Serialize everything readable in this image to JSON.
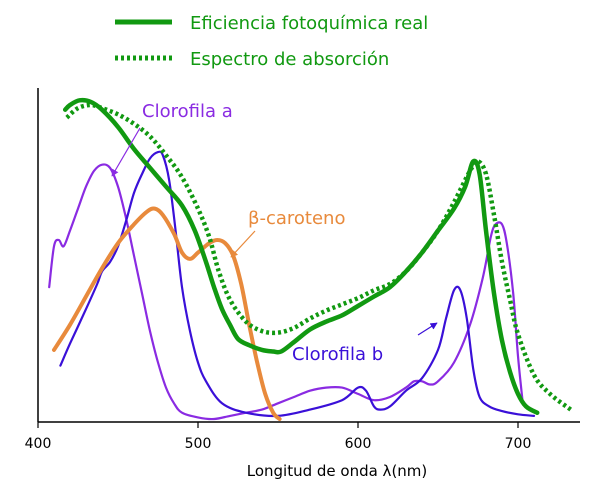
{
  "chart_data": {
    "type": "line",
    "title": "",
    "xlabel": "Longitud de onda λ(nm)",
    "ylabel": "",
    "xlim": [
      400,
      735
    ],
    "ylim": [
      0,
      1
    ],
    "xticks": [
      "400",
      "500",
      "600",
      "700"
    ],
    "grid": false,
    "legend": {
      "placement": "top-center"
    },
    "series": [
      {
        "name": "Eficiencia fotoquímica real",
        "color": "#119911",
        "style": "solid",
        "points": [
          [
            417,
            0.985
          ],
          [
            420,
            1.0
          ],
          [
            426,
            1.015
          ],
          [
            433,
            1.01
          ],
          [
            440,
            0.985
          ],
          [
            450,
            0.93
          ],
          [
            460,
            0.86
          ],
          [
            470,
            0.8
          ],
          [
            480,
            0.74
          ],
          [
            490,
            0.68
          ],
          [
            498,
            0.6
          ],
          [
            505,
            0.5
          ],
          [
            510,
            0.42
          ],
          [
            515,
            0.35
          ],
          [
            520,
            0.3
          ],
          [
            525,
            0.255
          ],
          [
            532,
            0.235
          ],
          [
            540,
            0.22
          ],
          [
            547,
            0.215
          ],
          [
            552,
            0.215
          ],
          [
            560,
            0.245
          ],
          [
            570,
            0.285
          ],
          [
            580,
            0.31
          ],
          [
            590,
            0.33
          ],
          [
            600,
            0.36
          ],
          [
            610,
            0.39
          ],
          [
            620,
            0.42
          ],
          [
            630,
            0.47
          ],
          [
            640,
            0.53
          ],
          [
            650,
            0.6
          ],
          [
            660,
            0.67
          ],
          [
            667,
            0.74
          ],
          [
            672,
            0.82
          ],
          [
            676,
            0.78
          ],
          [
            680,
            0.6
          ],
          [
            685,
            0.4
          ],
          [
            690,
            0.25
          ],
          [
            695,
            0.15
          ],
          [
            700,
            0.08
          ],
          [
            705,
            0.04
          ],
          [
            712,
            0.02
          ]
        ]
      },
      {
        "name": "Espectro de absorción",
        "color": "#119911",
        "style": "dotted",
        "points": [
          [
            418,
            0.96
          ],
          [
            425,
            0.99
          ],
          [
            433,
            1.0
          ],
          [
            440,
            0.99
          ],
          [
            450,
            0.97
          ],
          [
            460,
            0.94
          ],
          [
            470,
            0.9
          ],
          [
            480,
            0.84
          ],
          [
            490,
            0.77
          ],
          [
            500,
            0.67
          ],
          [
            507,
            0.58
          ],
          [
            513,
            0.47
          ],
          [
            520,
            0.38
          ],
          [
            530,
            0.31
          ],
          [
            540,
            0.28
          ],
          [
            550,
            0.275
          ],
          [
            560,
            0.29
          ],
          [
            570,
            0.32
          ],
          [
            580,
            0.345
          ],
          [
            590,
            0.365
          ],
          [
            600,
            0.385
          ],
          [
            610,
            0.41
          ],
          [
            620,
            0.43
          ],
          [
            630,
            0.47
          ],
          [
            640,
            0.53
          ],
          [
            650,
            0.6
          ],
          [
            660,
            0.69
          ],
          [
            670,
            0.79
          ],
          [
            675,
            0.82
          ],
          [
            680,
            0.78
          ],
          [
            685,
            0.65
          ],
          [
            690,
            0.5
          ],
          [
            695,
            0.38
          ],
          [
            700,
            0.27
          ],
          [
            710,
            0.14
          ],
          [
            720,
            0.08
          ],
          [
            733,
            0.03
          ]
        ]
      },
      {
        "name": "Clorofila a",
        "color": "#8a2be2",
        "style": "solid",
        "points": [
          [
            407,
            0.42
          ],
          [
            410,
            0.55
          ],
          [
            413,
            0.57
          ],
          [
            416,
            0.55
          ],
          [
            420,
            0.6
          ],
          [
            425,
            0.67
          ],
          [
            430,
            0.74
          ],
          [
            435,
            0.79
          ],
          [
            440,
            0.81
          ],
          [
            445,
            0.8
          ],
          [
            450,
            0.74
          ],
          [
            455,
            0.64
          ],
          [
            460,
            0.52
          ],
          [
            465,
            0.4
          ],
          [
            470,
            0.28
          ],
          [
            475,
            0.18
          ],
          [
            480,
            0.1
          ],
          [
            485,
            0.05
          ],
          [
            490,
            0.02
          ],
          [
            500,
            0.005
          ],
          [
            510,
            0.0
          ],
          [
            520,
            0.01
          ],
          [
            530,
            0.02
          ],
          [
            540,
            0.03
          ],
          [
            550,
            0.05
          ],
          [
            560,
            0.07
          ],
          [
            570,
            0.09
          ],
          [
            580,
            0.1
          ],
          [
            590,
            0.1
          ],
          [
            600,
            0.08
          ],
          [
            610,
            0.06
          ],
          [
            620,
            0.07
          ],
          [
            630,
            0.1
          ],
          [
            635,
            0.12
          ],
          [
            640,
            0.12
          ],
          [
            645,
            0.11
          ],
          [
            650,
            0.12
          ],
          [
            660,
            0.18
          ],
          [
            670,
            0.3
          ],
          [
            678,
            0.45
          ],
          [
            683,
            0.58
          ],
          [
            686,
            0.62
          ],
          [
            690,
            0.62
          ],
          [
            693,
            0.56
          ],
          [
            697,
            0.4
          ],
          [
            700,
            0.2
          ],
          [
            703,
            0.05
          ]
        ]
      },
      {
        "name": "Clorofila b",
        "color": "#3a10d8",
        "style": "solid",
        "points": [
          [
            414,
            0.17
          ],
          [
            420,
            0.24
          ],
          [
            430,
            0.35
          ],
          [
            437,
            0.43
          ],
          [
            440,
            0.47
          ],
          [
            445,
            0.5
          ],
          [
            450,
            0.55
          ],
          [
            455,
            0.63
          ],
          [
            460,
            0.72
          ],
          [
            465,
            0.78
          ],
          [
            470,
            0.83
          ],
          [
            475,
            0.85
          ],
          [
            478,
            0.84
          ],
          [
            482,
            0.76
          ],
          [
            486,
            0.6
          ],
          [
            490,
            0.42
          ],
          [
            495,
            0.28
          ],
          [
            500,
            0.18
          ],
          [
            505,
            0.12
          ],
          [
            515,
            0.05
          ],
          [
            530,
            0.02
          ],
          [
            550,
            0.01
          ],
          [
            570,
            0.03
          ],
          [
            590,
            0.06
          ],
          [
            600,
            0.1
          ],
          [
            605,
            0.09
          ],
          [
            610,
            0.04
          ],
          [
            614,
            0.03
          ],
          [
            620,
            0.04
          ],
          [
            630,
            0.09
          ],
          [
            640,
            0.13
          ],
          [
            650,
            0.22
          ],
          [
            655,
            0.32
          ],
          [
            660,
            0.41
          ],
          [
            664,
            0.41
          ],
          [
            668,
            0.32
          ],
          [
            672,
            0.16
          ],
          [
            676,
            0.07
          ],
          [
            682,
            0.04
          ],
          [
            690,
            0.025
          ],
          [
            700,
            0.015
          ],
          [
            710,
            0.01
          ]
        ]
      },
      {
        "name": "β-caroteno",
        "color": "#e88a3c",
        "style": "solid",
        "points": [
          [
            410,
            0.22
          ],
          [
            420,
            0.3
          ],
          [
            430,
            0.39
          ],
          [
            440,
            0.48
          ],
          [
            450,
            0.56
          ],
          [
            460,
            0.62
          ],
          [
            468,
            0.66
          ],
          [
            473,
            0.67
          ],
          [
            478,
            0.65
          ],
          [
            485,
            0.59
          ],
          [
            490,
            0.53
          ],
          [
            495,
            0.51
          ],
          [
            500,
            0.53
          ],
          [
            507,
            0.56
          ],
          [
            512,
            0.57
          ],
          [
            517,
            0.56
          ],
          [
            522,
            0.52
          ],
          [
            527,
            0.43
          ],
          [
            532,
            0.3
          ],
          [
            537,
            0.18
          ],
          [
            542,
            0.08
          ],
          [
            547,
            0.02
          ],
          [
            551,
            0.0
          ]
        ]
      }
    ],
    "annotations": [
      {
        "text": "Clorofila a",
        "color": "#8a2be2",
        "points_to_nm": 440
      },
      {
        "text": "β-caroteno",
        "color": "#e88a3c",
        "points_to_nm": 512
      },
      {
        "text": "Clorofila b",
        "color": "#3a10d8",
        "points_to_nm": 664
      }
    ]
  }
}
